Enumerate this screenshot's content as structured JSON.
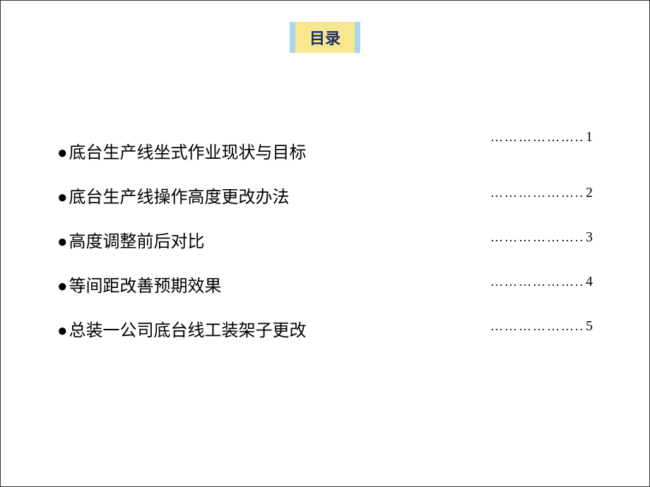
{
  "title": {
    "text": "目录",
    "bg_color": "#f7e88f",
    "border_color": "#a8d5e8",
    "text_color": "#1a2b6d",
    "fontsize": 22
  },
  "toc": {
    "bullet": "●",
    "label_fontsize": 24,
    "label_color": "#000000",
    "dots": "………………..",
    "dots_fontsize": 18,
    "page_fontsize": 20,
    "page_color": "#000000",
    "items": [
      {
        "label": "底台生产线坐式作业现状与目标",
        "page": "1"
      },
      {
        "label": "底台生产线操作高度更改办法",
        "page": "2"
      },
      {
        "label": "高度调整前后对比",
        "page": "3"
      },
      {
        "label": "等间距改善预期效果",
        "page": "4"
      },
      {
        "label": "总装一公司底台线工装架子更改",
        "page": "5"
      }
    ]
  },
  "background_color": "#ffffff"
}
